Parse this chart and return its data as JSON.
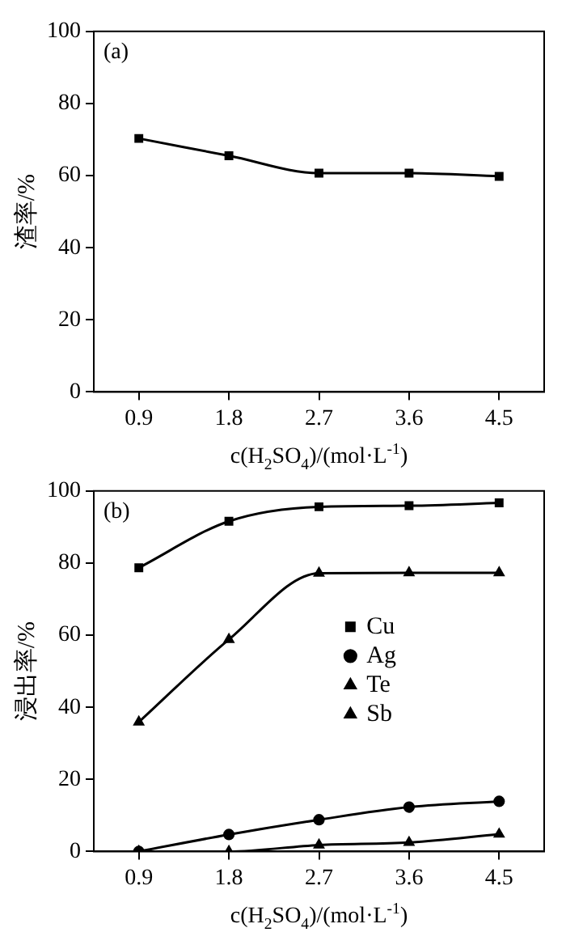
{
  "chart_data": [
    {
      "type": "line",
      "annotations": [
        "(a)"
      ],
      "xlabel": "c(H$_{2}$SO$_{4}$)/(mol·L$^{-1}$)",
      "ylabel": "渣率/%",
      "categories": [
        "0.9",
        "1.8",
        "2.7",
        "3.6",
        "4.5"
      ],
      "series": [
        {
          "color": "#000000",
          "marker": "square",
          "values": [
            70.3,
            65.5,
            60.7,
            60.7,
            59.8
          ]
        }
      ],
      "ylim": [
        0,
        100
      ],
      "yticks": [
        0,
        20,
        40,
        60,
        80,
        100
      ],
      "grid": false,
      "legend": false
    },
    {
      "type": "line",
      "annotations": [
        "(b)"
      ],
      "xlabel": "c(H$_{2}$SO$_{4}$)/(mol·L$^{-1}$)",
      "ylabel": "浸出率/%",
      "categories": [
        "0.9",
        "1.8",
        "2.7",
        "3.6",
        "4.5"
      ],
      "series": [
        {
          "name": "Cu",
          "color": "#000000",
          "marker": "square",
          "values": [
            78.7,
            91.6,
            95.6,
            95.9,
            96.7
          ]
        },
        {
          "name": "Ag",
          "color": "#000000",
          "marker": "circle",
          "values": [
            0,
            4.7,
            8.8,
            12.3,
            13.9
          ]
        },
        {
          "name": "Te",
          "color": "#000000",
          "marker": "triangle",
          "values": [
            35.9,
            58.8,
            77.2,
            77.3,
            77.3
          ]
        },
        {
          "name": "Sb",
          "color": "#000000",
          "marker": "triangle",
          "values": [
            0,
            0,
            1.8,
            2.5,
            4.8
          ]
        }
      ],
      "ylim": [
        0,
        100
      ],
      "yticks": [
        0,
        20,
        40,
        60,
        80,
        100
      ],
      "grid": false,
      "legend": "center"
    }
  ]
}
